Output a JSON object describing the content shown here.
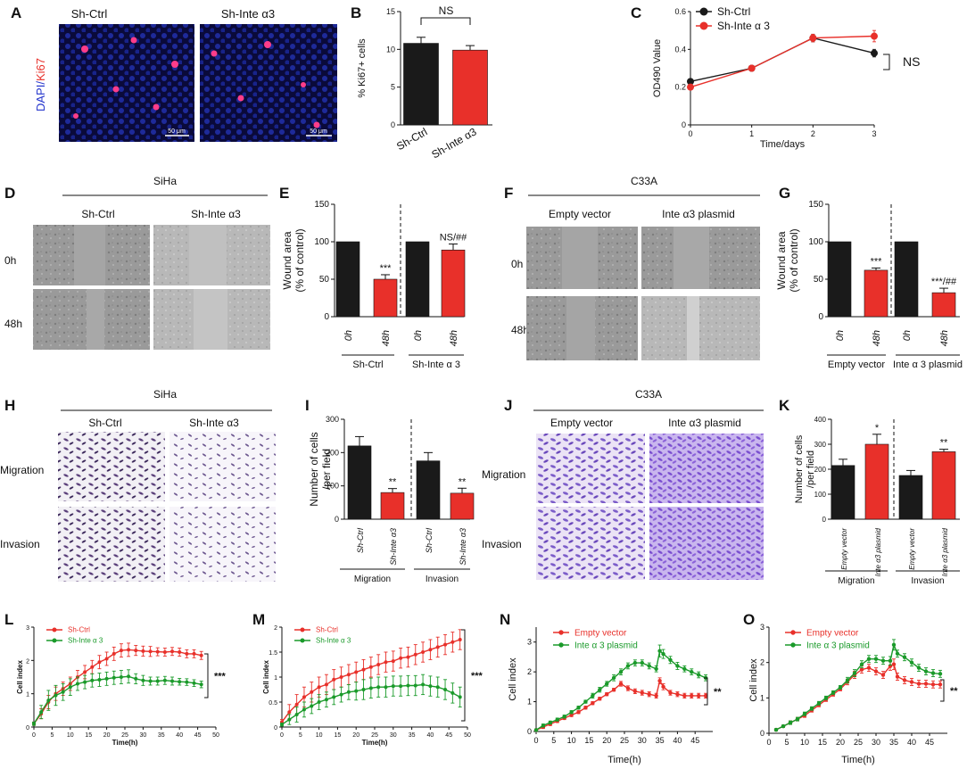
{
  "colors": {
    "ctrl": "#1a1a1a",
    "treat": "#e8302a",
    "green": "#1a9a2a",
    "red": "#e8302a"
  },
  "labels": {
    "A": "A",
    "B": "B",
    "C": "C",
    "D": "D",
    "E": "E",
    "F": "F",
    "G": "G",
    "H": "H",
    "I": "I",
    "J": "J",
    "K": "K",
    "L": "L",
    "M": "M",
    "N": "N",
    "O": "O"
  },
  "panelA": {
    "ylabel_dapi": "DAPI/",
    "ylabel_ki67": "Ki67",
    "col1": "Sh-Ctrl",
    "col2": "Sh-Inte α3",
    "scale1": "50 μm",
    "scale2": "50 μm"
  },
  "panelD": {
    "title": "SiHa",
    "col1": "Sh-Ctrl",
    "col2": "Sh-Inte α3",
    "row1": "0h",
    "row2": "48h"
  },
  "panelF": {
    "title": "C33A",
    "col1": "Empty vector",
    "col2": "Inte α3 plasmid",
    "row1": "0h",
    "row2": "48h"
  },
  "panelH": {
    "title": "SiHa",
    "col1": "Sh-Ctrl",
    "col2": "Sh-Inte α3",
    "row1": "Migration",
    "row2": "Invasion"
  },
  "panelJ": {
    "title": "C33A",
    "col1": "Empty vector",
    "col2": "Inte α3 plasmid",
    "row1": "Migration",
    "row2": "Invasion"
  },
  "chart_data": [
    {
      "id": "B",
      "type": "bar",
      "ylabel": "% Ki67+ cells",
      "ylim": [
        0,
        15
      ],
      "yticks": [
        0,
        5,
        10,
        15
      ],
      "categories": [
        "Sh-Ctrl",
        "Sh-Inte α3"
      ],
      "values": [
        10.8,
        9.9
      ],
      "errors": [
        0.8,
        0.6
      ],
      "annotation": "NS"
    },
    {
      "id": "C",
      "type": "line",
      "xlabel": "Time/days",
      "ylabel": "OD490  Value",
      "xlim": [
        0,
        3
      ],
      "ylim": [
        0,
        0.6
      ],
      "xticks": [
        0,
        1,
        2,
        3
      ],
      "yticks": [
        0.0,
        0.2,
        0.4,
        0.6
      ],
      "x": [
        0,
        1,
        2,
        3
      ],
      "series": [
        {
          "name": "Sh-Ctrl",
          "values": [
            0.23,
            0.3,
            0.46,
            0.38
          ],
          "errors": [
            0.005,
            0.01,
            0.02,
            0.02
          ]
        },
        {
          "name": "Sh-Inte α 3",
          "values": [
            0.2,
            0.3,
            0.46,
            0.47
          ],
          "errors": [
            0.005,
            0.01,
            0.02,
            0.03
          ]
        }
      ],
      "annotation": "NS"
    },
    {
      "id": "E",
      "type": "bar",
      "ylabel": "Wound area\n(% of control)",
      "ylim": [
        0,
        150
      ],
      "yticks": [
        0,
        50,
        100,
        150
      ],
      "categories": [
        "0h",
        "48h",
        "0h",
        "48h"
      ],
      "values": [
        100,
        50,
        100,
        89
      ],
      "errors": [
        0,
        6,
        0,
        8
      ],
      "stars": [
        "",
        "***",
        "",
        "NS/##"
      ],
      "groups": [
        "Sh-Ctrl",
        "Sh-Inte α 3"
      ]
    },
    {
      "id": "G",
      "type": "bar",
      "ylabel": "Wound area\n(% of control)",
      "ylim": [
        0,
        150
      ],
      "yticks": [
        0,
        50,
        100,
        150
      ],
      "categories": [
        "0h",
        "48h",
        "0h",
        "48h"
      ],
      "values": [
        100,
        62,
        100,
        32
      ],
      "errors": [
        0,
        3,
        0,
        6
      ],
      "stars": [
        "",
        "***",
        "",
        "***/##"
      ],
      "groups": [
        "Empty vector",
        "Inte α 3 plasmid"
      ]
    },
    {
      "id": "I",
      "type": "bar",
      "ylabel": "Number of cells\n/per field",
      "ylim": [
        0,
        300
      ],
      "yticks": [
        0,
        100,
        200,
        300
      ],
      "categories": [
        "Sh-Ctrl",
        "Sh-Inte α3",
        "Sh-Ctrl",
        "Sh-Inte α3"
      ],
      "values": [
        220,
        80,
        175,
        78
      ],
      "errors": [
        28,
        12,
        25,
        15
      ],
      "stars": [
        "",
        "**",
        "",
        "**"
      ],
      "groups": [
        "Migration",
        "Invasion"
      ]
    },
    {
      "id": "K",
      "type": "bar",
      "ylabel": "Number of cells\n/per field",
      "ylim": [
        0,
        400
      ],
      "yticks": [
        0,
        100,
        200,
        300,
        400
      ],
      "categories": [
        "Empty vector",
        "Inte α3 plasmid",
        "Empty vector",
        "Inte α3 plasmid"
      ],
      "values": [
        215,
        300,
        175,
        270
      ],
      "errors": [
        25,
        40,
        20,
        10
      ],
      "stars": [
        "",
        "*",
        "",
        "**"
      ],
      "groups": [
        "Migration",
        "Invasion"
      ]
    },
    {
      "id": "L",
      "type": "line",
      "xlabel": "Time(h)",
      "ylabel": "Cell index",
      "xlim": [
        0,
        50
      ],
      "ylim": [
        0,
        3
      ],
      "xticks": [
        0,
        5,
        10,
        15,
        20,
        25,
        30,
        35,
        40,
        45,
        50
      ],
      "yticks": [
        0,
        1,
        2,
        3
      ],
      "annotation": "***",
      "series": [
        {
          "name": "Sh-Ctrl",
          "x": [
            0,
            2,
            4,
            6,
            8,
            10,
            12,
            14,
            16,
            18,
            20,
            22,
            24,
            26,
            28,
            30,
            32,
            34,
            36,
            38,
            40,
            42,
            44,
            46
          ],
          "values": [
            0.1,
            0.4,
            0.75,
            1.0,
            1.15,
            1.3,
            1.5,
            1.65,
            1.8,
            1.95,
            2.05,
            2.2,
            2.3,
            2.32,
            2.3,
            2.28,
            2.27,
            2.26,
            2.25,
            2.27,
            2.25,
            2.2,
            2.2,
            2.15
          ],
          "errors": [
            0.05,
            0.15,
            0.2,
            0.2,
            0.2,
            0.2,
            0.2,
            0.2,
            0.2,
            0.2,
            0.2,
            0.2,
            0.2,
            0.2,
            0.15,
            0.15,
            0.15,
            0.12,
            0.12,
            0.12,
            0.12,
            0.12,
            0.12,
            0.12
          ]
        },
        {
          "name": "Sh-Inte α 3",
          "x": [
            0,
            2,
            4,
            6,
            8,
            10,
            12,
            14,
            16,
            18,
            20,
            22,
            24,
            26,
            28,
            30,
            32,
            34,
            36,
            38,
            40,
            42,
            44,
            46
          ],
          "values": [
            0.1,
            0.45,
            0.8,
            0.95,
            1.05,
            1.2,
            1.3,
            1.35,
            1.4,
            1.42,
            1.45,
            1.48,
            1.5,
            1.52,
            1.45,
            1.4,
            1.38,
            1.38,
            1.4,
            1.38,
            1.36,
            1.35,
            1.32,
            1.28
          ],
          "errors": [
            0.05,
            0.2,
            0.3,
            0.3,
            0.25,
            0.25,
            0.2,
            0.2,
            0.2,
            0.2,
            0.2,
            0.2,
            0.2,
            0.2,
            0.15,
            0.15,
            0.12,
            0.12,
            0.12,
            0.12,
            0.1,
            0.1,
            0.1,
            0.1
          ]
        }
      ]
    },
    {
      "id": "M",
      "type": "line",
      "xlabel": "Time(h)",
      "ylabel": "Cell index",
      "xlim": [
        0,
        50
      ],
      "ylim": [
        0,
        2.0
      ],
      "xticks": [
        0,
        5,
        10,
        15,
        20,
        25,
        30,
        35,
        40,
        45,
        50
      ],
      "yticks": [
        0,
        0.5,
        1.0,
        1.5,
        2.0
      ],
      "annotation": "***",
      "series": [
        {
          "name": "Sh-Ctrl",
          "x": [
            0,
            2,
            4,
            6,
            8,
            10,
            12,
            14,
            16,
            18,
            20,
            22,
            24,
            26,
            28,
            30,
            32,
            34,
            36,
            38,
            40,
            42,
            44,
            46,
            48
          ],
          "values": [
            0.1,
            0.3,
            0.45,
            0.6,
            0.7,
            0.8,
            0.85,
            0.95,
            1.0,
            1.05,
            1.1,
            1.15,
            1.2,
            1.25,
            1.3,
            1.32,
            1.38,
            1.4,
            1.45,
            1.5,
            1.55,
            1.6,
            1.65,
            1.7,
            1.75
          ],
          "errors": [
            0.05,
            0.15,
            0.2,
            0.2,
            0.2,
            0.2,
            0.2,
            0.2,
            0.2,
            0.2,
            0.2,
            0.2,
            0.2,
            0.2,
            0.2,
            0.2,
            0.2,
            0.2,
            0.2,
            0.2,
            0.2,
            0.2,
            0.2,
            0.2,
            0.2
          ]
        },
        {
          "name": "Sh-Inte α 3",
          "x": [
            0,
            2,
            4,
            6,
            8,
            10,
            12,
            14,
            16,
            18,
            20,
            22,
            24,
            26,
            28,
            30,
            32,
            34,
            36,
            38,
            40,
            42,
            44,
            46,
            48
          ],
          "values": [
            0.05,
            0.15,
            0.25,
            0.35,
            0.42,
            0.5,
            0.55,
            0.6,
            0.65,
            0.7,
            0.72,
            0.75,
            0.78,
            0.8,
            0.8,
            0.82,
            0.82,
            0.83,
            0.83,
            0.85,
            0.82,
            0.8,
            0.75,
            0.68,
            0.6
          ],
          "errors": [
            0.03,
            0.1,
            0.15,
            0.15,
            0.15,
            0.15,
            0.15,
            0.15,
            0.15,
            0.15,
            0.18,
            0.2,
            0.2,
            0.2,
            0.2,
            0.2,
            0.2,
            0.2,
            0.2,
            0.2,
            0.2,
            0.2,
            0.2,
            0.2,
            0.2
          ]
        }
      ]
    },
    {
      "id": "N",
      "type": "line",
      "xlabel": "Time(h)",
      "ylabel": "Cell index",
      "xlim": [
        0,
        50
      ],
      "ylim": [
        0,
        3.5
      ],
      "xticks": [
        0,
        5,
        10,
        15,
        20,
        25,
        30,
        35,
        40,
        45
      ],
      "yticks": [
        0,
        1,
        2,
        3
      ],
      "annotation": "**",
      "series": [
        {
          "name": "Empty vector",
          "x": [
            0,
            2,
            4,
            6,
            8,
            10,
            12,
            14,
            16,
            18,
            20,
            22,
            24,
            26,
            28,
            30,
            32,
            34,
            35,
            36,
            38,
            40,
            42,
            44,
            46,
            48
          ],
          "values": [
            0.05,
            0.15,
            0.25,
            0.35,
            0.45,
            0.55,
            0.65,
            0.8,
            0.95,
            1.1,
            1.25,
            1.4,
            1.6,
            1.45,
            1.35,
            1.3,
            1.25,
            1.2,
            1.7,
            1.5,
            1.3,
            1.25,
            1.2,
            1.2,
            1.2,
            1.2
          ],
          "errors": [
            0.03,
            0.05,
            0.05,
            0.05,
            0.05,
            0.05,
            0.05,
            0.05,
            0.05,
            0.05,
            0.05,
            0.05,
            0.08,
            0.08,
            0.08,
            0.08,
            0.08,
            0.08,
            0.1,
            0.1,
            0.08,
            0.08,
            0.08,
            0.08,
            0.08,
            0.08
          ]
        },
        {
          "name": "Inte α 3 plasmid",
          "x": [
            0,
            2,
            4,
            6,
            8,
            10,
            12,
            14,
            16,
            18,
            20,
            22,
            24,
            26,
            28,
            30,
            32,
            34,
            35,
            36,
            38,
            40,
            42,
            44,
            46,
            48
          ],
          "values": [
            0.05,
            0.2,
            0.3,
            0.4,
            0.5,
            0.65,
            0.8,
            1.0,
            1.2,
            1.4,
            1.6,
            1.8,
            2.0,
            2.2,
            2.3,
            2.3,
            2.2,
            2.1,
            2.7,
            2.6,
            2.4,
            2.2,
            2.1,
            2.0,
            1.9,
            1.8
          ],
          "errors": [
            0.03,
            0.05,
            0.05,
            0.05,
            0.05,
            0.05,
            0.05,
            0.05,
            0.08,
            0.08,
            0.08,
            0.1,
            0.1,
            0.1,
            0.1,
            0.1,
            0.1,
            0.1,
            0.2,
            0.15,
            0.12,
            0.12,
            0.1,
            0.1,
            0.1,
            0.1
          ]
        }
      ]
    },
    {
      "id": "O",
      "type": "line",
      "xlabel": "Time(h)",
      "ylabel": "Cell index",
      "xlim": [
        0,
        50
      ],
      "ylim": [
        0,
        3
      ],
      "xticks": [
        0,
        5,
        10,
        15,
        20,
        25,
        30,
        35,
        40,
        45
      ],
      "yticks": [
        0,
        1,
        2,
        3
      ],
      "annotation": "**",
      "series": [
        {
          "name": "Empty vector",
          "x": [
            2,
            4,
            6,
            8,
            10,
            12,
            14,
            16,
            18,
            20,
            22,
            24,
            26,
            28,
            30,
            32,
            34,
            35,
            36,
            38,
            40,
            42,
            44,
            46,
            48
          ],
          "values": [
            0.1,
            0.2,
            0.3,
            0.4,
            0.5,
            0.65,
            0.8,
            0.95,
            1.1,
            1.25,
            1.45,
            1.65,
            1.8,
            1.85,
            1.75,
            1.65,
            1.9,
            1.95,
            1.6,
            1.5,
            1.45,
            1.4,
            1.4,
            1.38,
            1.38
          ],
          "errors": [
            0.03,
            0.03,
            0.05,
            0.05,
            0.05,
            0.05,
            0.05,
            0.05,
            0.05,
            0.05,
            0.08,
            0.1,
            0.1,
            0.1,
            0.1,
            0.1,
            0.12,
            0.15,
            0.1,
            0.1,
            0.1,
            0.1,
            0.1,
            0.1,
            0.1
          ]
        },
        {
          "name": "Inte α 3 plasmid",
          "x": [
            2,
            4,
            6,
            8,
            10,
            12,
            14,
            16,
            18,
            20,
            22,
            24,
            26,
            28,
            30,
            32,
            34,
            35,
            36,
            38,
            40,
            42,
            44,
            46,
            48
          ],
          "values": [
            0.1,
            0.2,
            0.3,
            0.4,
            0.55,
            0.7,
            0.85,
            1.0,
            1.15,
            1.3,
            1.5,
            1.7,
            1.95,
            2.1,
            2.1,
            2.05,
            2.05,
            2.5,
            2.25,
            2.15,
            2.0,
            1.85,
            1.75,
            1.7,
            1.68
          ],
          "errors": [
            0.03,
            0.03,
            0.05,
            0.05,
            0.05,
            0.05,
            0.05,
            0.05,
            0.05,
            0.05,
            0.08,
            0.1,
            0.1,
            0.1,
            0.1,
            0.1,
            0.12,
            0.15,
            0.1,
            0.1,
            0.1,
            0.1,
            0.1,
            0.1,
            0.1
          ]
        }
      ]
    }
  ]
}
